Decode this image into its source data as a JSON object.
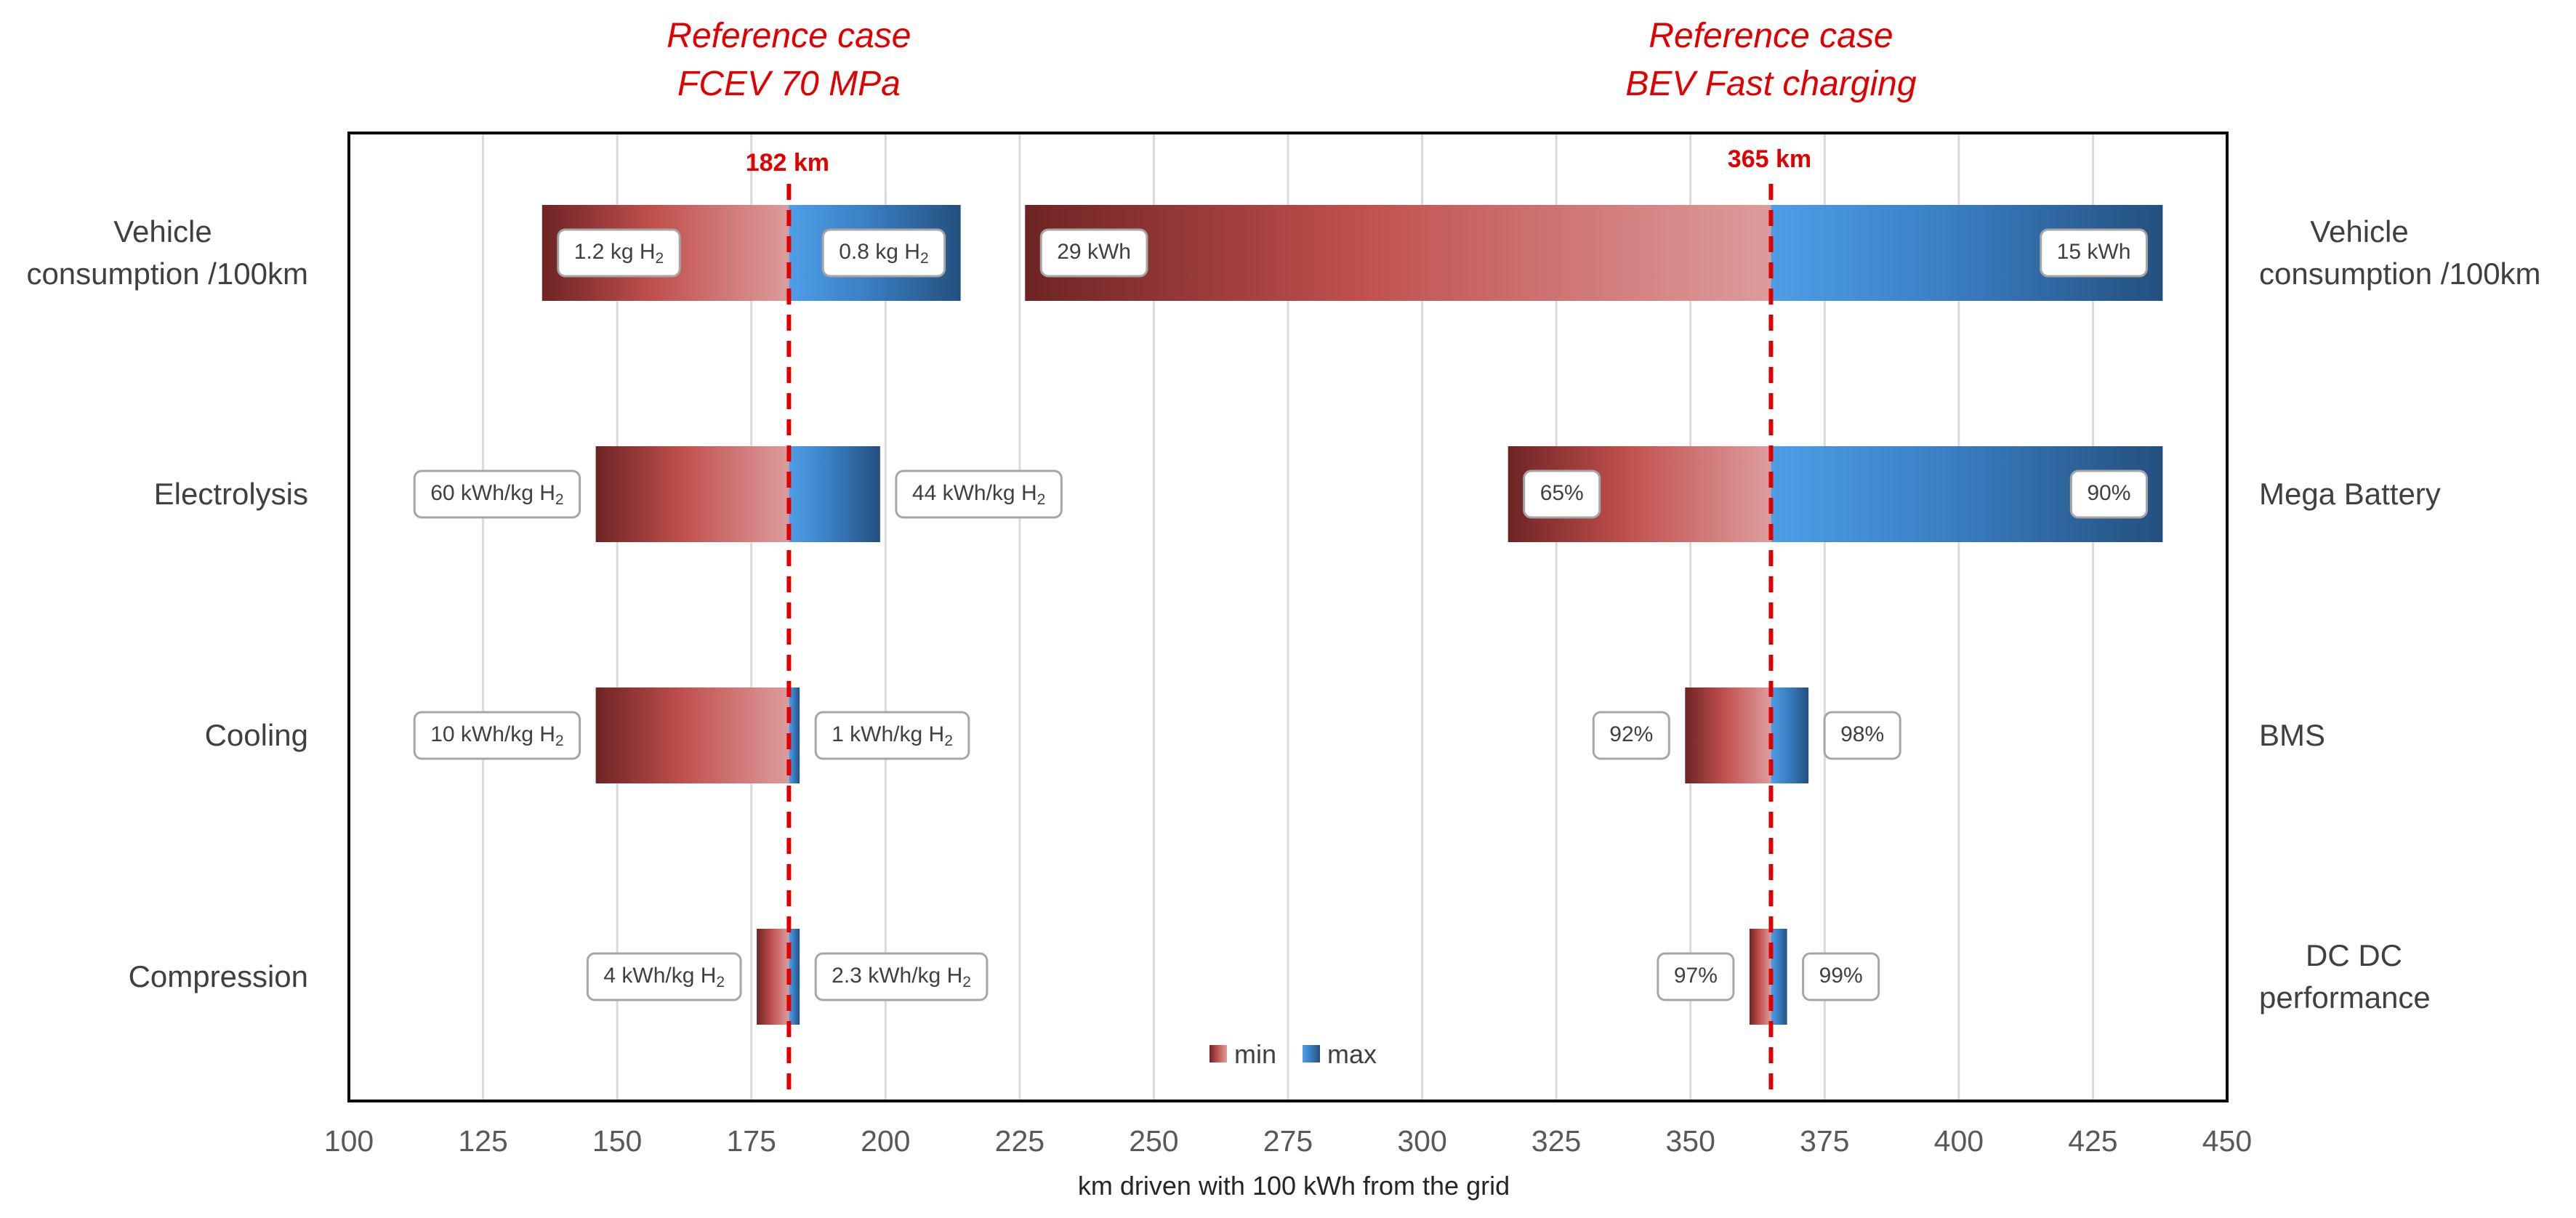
{
  "chart_data": {
    "type": "bar",
    "subtype": "tornado",
    "xlabel": "km driven with 100 kWh from the grid",
    "xlim": [
      100,
      450
    ],
    "xticks": [
      100,
      125,
      150,
      175,
      200,
      225,
      250,
      275,
      300,
      325,
      350,
      375,
      400,
      425,
      450
    ],
    "grid": true,
    "legend": {
      "position": "bottom-center",
      "entries": [
        {
          "name": "min",
          "color": "#c0504d"
        },
        {
          "name": "max",
          "color": "#3a7fc4"
        }
      ]
    },
    "references": [
      {
        "title_line1": "Reference case",
        "title_line2": "FCEV 70 MPa",
        "value": 182,
        "label": "182 km"
      },
      {
        "title_line1": "Reference case",
        "title_line2": "BEV Fast charging",
        "value": 365,
        "label": "365 km"
      }
    ],
    "left_categories": [
      {
        "label_lines": [
          "Vehicle",
          "consumption /100km"
        ],
        "min": 136,
        "max": 214,
        "min_label": "1.2 kg H2",
        "max_label": "0.8 kg H2",
        "labels_inside": true
      },
      {
        "label_lines": [
          "Electrolysis"
        ],
        "min": 146,
        "max": 199,
        "min_label": "60 kWh/kg H2",
        "max_label": "44 kWh/kg H2",
        "labels_inside": false
      },
      {
        "label_lines": [
          "Cooling"
        ],
        "min": 146,
        "max": 184,
        "min_label": "10 kWh/kg H2",
        "max_label": "1 kWh/kg H2",
        "labels_inside": false
      },
      {
        "label_lines": [
          "Compression"
        ],
        "min": 176,
        "max": 184,
        "min_label": "4 kWh/kg H2",
        "max_label": "2.3 kWh/kg H2",
        "labels_inside": false
      }
    ],
    "right_categories": [
      {
        "label_lines": [
          "Vehicle",
          "consumption /100km"
        ],
        "min": 226,
        "max": 438,
        "min_label": "29 kWh",
        "max_label": "15 kWh",
        "labels_inside": true
      },
      {
        "label_lines": [
          "Mega Battery"
        ],
        "min": 316,
        "max": 438,
        "min_label": "65%",
        "max_label": "90%",
        "labels_inside": true
      },
      {
        "label_lines": [
          "BMS"
        ],
        "min": 349,
        "max": 372,
        "min_label": "92%",
        "max_label": "98%",
        "labels_inside": false
      },
      {
        "label_lines": [
          "DC DC",
          "performance"
        ],
        "min": 361,
        "max": 368,
        "min_label": "97%",
        "max_label": "99%",
        "labels_inside": false
      }
    ]
  }
}
